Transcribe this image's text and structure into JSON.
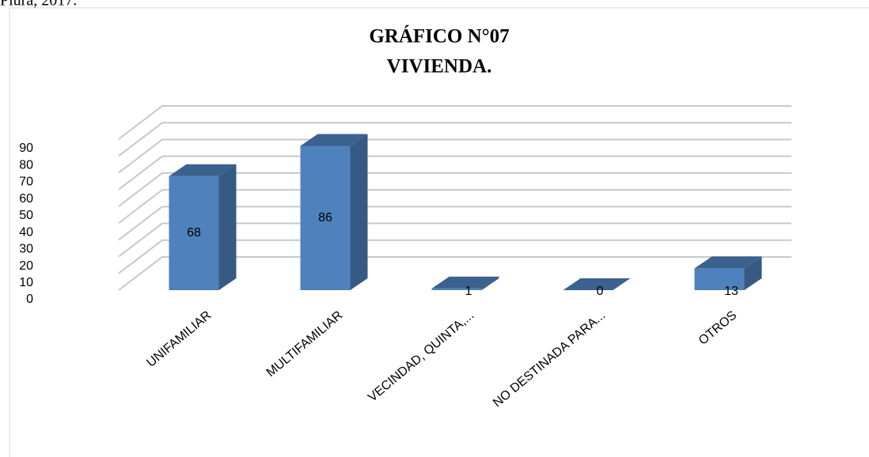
{
  "caption": "Piura, 2017.",
  "chart_data": {
    "type": "bar3d",
    "title": "GRÁFICO N°07",
    "subtitle": "VIVIENDA.",
    "categories": [
      "UNIFAMILIAR",
      "MULTIFAMILIAR",
      "VECINDAD, QUINTA,...",
      "NO DESTINADA PARA...",
      "OTROS"
    ],
    "values": [
      68,
      86,
      1,
      0,
      13
    ],
    "color": "#4f81bd",
    "ylim": [
      0,
      90
    ],
    "yticks": [
      0,
      10,
      20,
      30,
      40,
      50,
      60,
      70,
      80,
      90
    ],
    "grid": true
  }
}
